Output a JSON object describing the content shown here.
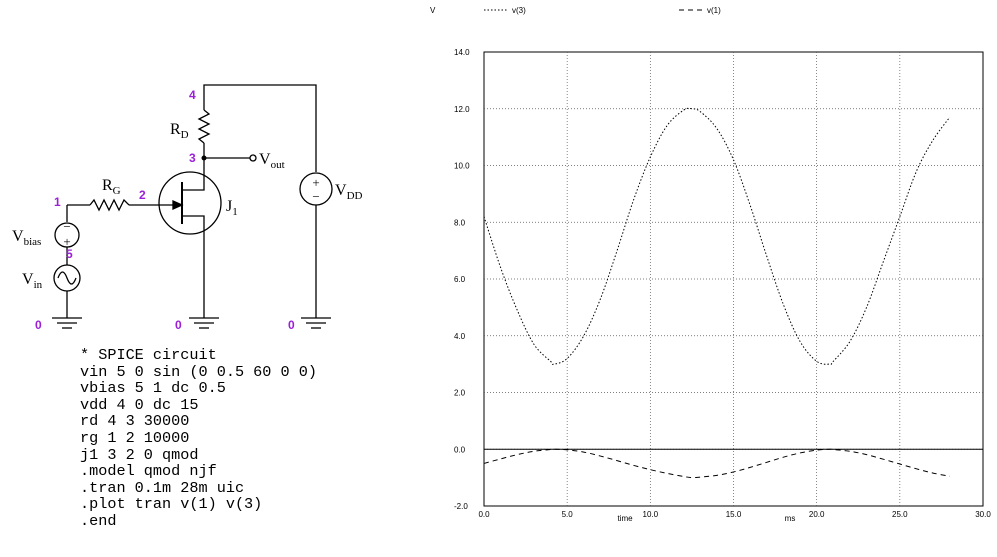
{
  "schematic": {
    "labels": {
      "rd": "R",
      "rd_sub": "D",
      "rg": "R",
      "rg_sub": "G",
      "vout": "V",
      "vout_sub": "out",
      "vdd": "V",
      "vdd_sub": "DD",
      "j1": "J",
      "j1_sub": "1",
      "vbias": "V",
      "vbias_sub": "bias",
      "vin": "V",
      "vin_sub": "in"
    },
    "nodes": {
      "n4": "4",
      "n3": "3",
      "n1": "1",
      "n2": "2",
      "n5": "5",
      "g1": "0",
      "g2": "0",
      "g3": "0"
    },
    "signs": {
      "plus": "+",
      "minus": "−"
    }
  },
  "spice": [
    "* SPICE circuit",
    "vin 5 0 sin (0 0.5 60 0 0)",
    "vbias 5 1 dc 0.5",
    "vdd 4 0 dc 15",
    "rd 4 3 30000",
    "rg 1 2 10000",
    "j1 3 2 0 qmod",
    ".model qmod njf",
    ".tran 0.1m 28m uic",
    ".plot tran v(1) v(3)",
    ".end"
  ],
  "chart_data": {
    "type": "line",
    "ylabel": "V",
    "xlabel": "time",
    "xunit": "ms",
    "xlim": [
      0,
      30
    ],
    "ylim": [
      -2,
      14
    ],
    "xticks": [
      "0.0",
      "5.0",
      "10.0",
      "15.0",
      "20.0",
      "25.0",
      "30.0"
    ],
    "yticks": [
      "-2.0",
      "0.0",
      "2.0",
      "4.0",
      "6.0",
      "8.0",
      "10.0",
      "12.0",
      "14.0"
    ],
    "grid": true,
    "series": [
      {
        "name": "v(3)",
        "dash": "dotted",
        "x": [
          0,
          1,
          2,
          3,
          4,
          4.2,
          5,
          6,
          7,
          8,
          9,
          10,
          11,
          12,
          12.5,
          13,
          14,
          15,
          16,
          17,
          18,
          19,
          20,
          20.8,
          21,
          22,
          23,
          24,
          25,
          26,
          27,
          28
        ],
        "y": [
          8.2,
          6.4,
          4.9,
          3.7,
          3.1,
          3.0,
          3.2,
          4.0,
          5.3,
          7.0,
          8.8,
          10.3,
          11.4,
          11.95,
          12.0,
          11.9,
          11.3,
          10.2,
          8.6,
          6.8,
          5.1,
          3.8,
          3.1,
          3.0,
          3.1,
          3.8,
          5.0,
          6.6,
          8.2,
          9.8,
          10.9,
          11.7
        ]
      },
      {
        "name": "v(1)",
        "dash": "dashed",
        "x": [
          0,
          1,
          2,
          3,
          4,
          4.2,
          5,
          6,
          7,
          8,
          9,
          10,
          11,
          12,
          12.5,
          13,
          14,
          15,
          16,
          17,
          18,
          19,
          20,
          20.8,
          21,
          22,
          23,
          24,
          25,
          26,
          27,
          28
        ],
        "y": [
          -0.5,
          -0.34,
          -0.19,
          -0.07,
          -0.01,
          0.0,
          -0.02,
          -0.1,
          -0.24,
          -0.4,
          -0.57,
          -0.72,
          -0.85,
          -0.96,
          -1.0,
          -0.98,
          -0.92,
          -0.8,
          -0.64,
          -0.46,
          -0.28,
          -0.13,
          -0.03,
          0.0,
          -0.01,
          -0.07,
          -0.19,
          -0.35,
          -0.52,
          -0.69,
          -0.84,
          -0.95
        ]
      }
    ]
  }
}
